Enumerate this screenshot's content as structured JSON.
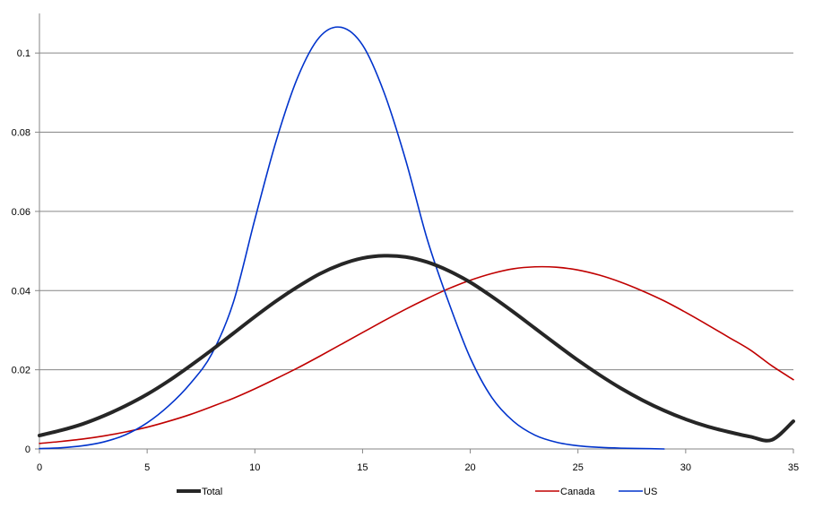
{
  "chart_data": {
    "type": "line",
    "title": "",
    "xlabel": "",
    "ylabel": "",
    "xlim": [
      0,
      35
    ],
    "ylim": [
      0,
      0.11
    ],
    "x_ticks": [
      0,
      5,
      10,
      15,
      20,
      25,
      30,
      35
    ],
    "x_tick_labels": [
      "0",
      "5",
      "10",
      "15",
      "20",
      "25",
      "30",
      "35"
    ],
    "y_ticks": [
      0,
      0.02,
      0.04,
      0.06,
      0.08,
      0.1
    ],
    "y_tick_labels": [
      "0",
      "0.02",
      "0.04",
      "0.06",
      "0.08",
      "0.1"
    ],
    "grid": "horizontal",
    "legend_position": "bottom",
    "series": [
      {
        "name": "Total",
        "color": "#262626",
        "x": [
          0,
          1,
          2,
          3,
          4,
          5,
          6,
          7,
          8,
          9,
          10,
          11,
          12,
          13,
          14,
          15,
          16,
          17,
          18,
          19,
          20,
          21,
          22,
          23,
          24,
          25,
          26,
          27,
          28,
          29,
          30,
          31,
          32,
          33,
          34,
          35
        ],
        "y": [
          0.0034,
          0.0047,
          0.0063,
          0.0084,
          0.0109,
          0.0138,
          0.0172,
          0.021,
          0.025,
          0.0292,
          0.0334,
          0.0374,
          0.041,
          0.0442,
          0.0466,
          0.0482,
          0.0488,
          0.0485,
          0.0472,
          0.045,
          0.0421,
          0.0385,
          0.0346,
          0.0305,
          0.0264,
          0.0224,
          0.0187,
          0.0153,
          0.0123,
          0.0097,
          0.0075,
          0.0057,
          0.0043,
          0.0031,
          0.0023,
          0.007
        ]
      },
      {
        "name": "Canada",
        "color": "#c00000",
        "x": [
          0,
          1,
          2,
          3,
          4,
          5,
          6,
          7,
          8,
          9,
          10,
          11,
          12,
          13,
          14,
          15,
          16,
          17,
          18,
          19,
          20,
          21,
          22,
          23,
          24,
          25,
          26,
          27,
          28,
          29,
          30,
          31,
          32,
          33,
          34,
          35
        ],
        "y": [
          0.0014,
          0.0019,
          0.0025,
          0.0033,
          0.0043,
          0.0055,
          0.007,
          0.0087,
          0.0107,
          0.0128,
          0.0152,
          0.0178,
          0.0205,
          0.0234,
          0.0264,
          0.0294,
          0.0324,
          0.0353,
          0.038,
          0.0405,
          0.0426,
          0.0443,
          0.0455,
          0.046,
          0.0459,
          0.0452,
          0.0439,
          0.0421,
          0.0399,
          0.0374,
          0.0345,
          0.0314,
          0.0282,
          0.025,
          0.021,
          0.0175
        ]
      },
      {
        "name": "US",
        "color": "#0033cc",
        "x": [
          0,
          1,
          2,
          3,
          4,
          5,
          6,
          7,
          8,
          9,
          10,
          11,
          12,
          13,
          14,
          15,
          16,
          17,
          18,
          19,
          20,
          21,
          22,
          23,
          24,
          25,
          26,
          27,
          28,
          29
        ],
        "y": [
          0.0001,
          0.0003,
          0.0008,
          0.0018,
          0.0036,
          0.0066,
          0.0109,
          0.0165,
          0.024,
          0.037,
          0.058,
          0.078,
          0.094,
          0.104,
          0.1065,
          0.102,
          0.09,
          0.073,
          0.053,
          0.037,
          0.023,
          0.013,
          0.007,
          0.0035,
          0.0017,
          0.0008,
          0.0004,
          0.0002,
          0.0001,
          0.0
        ]
      }
    ]
  }
}
